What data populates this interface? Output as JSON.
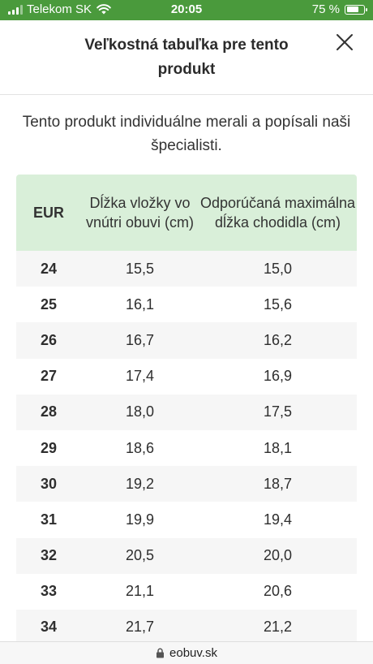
{
  "status_bar": {
    "carrier": "Telekom SK",
    "time": "20:05",
    "battery_text": "75 %",
    "battery_level": 0.75,
    "wifi_icon": "wifi-icon",
    "signal_bars": 3
  },
  "header": {
    "title": "Veľkostná tabuľka pre tento produkt",
    "close_icon": "close-icon"
  },
  "intro": "Tento produkt individuálne merali a popísali naši špecialisti.",
  "size_table": {
    "columns": [
      "EUR",
      "Dĺžka vložky vo vnútri obuvi (cm)",
      "Odporúčaná maximálna dĺžka chodidla (cm)"
    ],
    "rows": [
      [
        "24",
        "15,5",
        "15,0"
      ],
      [
        "25",
        "16,1",
        "15,6"
      ],
      [
        "26",
        "16,7",
        "16,2"
      ],
      [
        "27",
        "17,4",
        "16,9"
      ],
      [
        "28",
        "18,0",
        "17,5"
      ],
      [
        "29",
        "18,6",
        "18,1"
      ],
      [
        "30",
        "19,2",
        "18,7"
      ],
      [
        "31",
        "19,9",
        "19,4"
      ],
      [
        "32",
        "20,5",
        "20,0"
      ],
      [
        "33",
        "21,1",
        "20,6"
      ],
      [
        "34",
        "21,7",
        "21,2"
      ]
    ]
  },
  "url_bar": {
    "domain": "eobuv.sk",
    "lock_icon": "lock-icon"
  },
  "colors": {
    "status_bar": "#4a9a3c",
    "table_header": "#d9efd9",
    "row_stripe": "#f6f6f6"
  }
}
